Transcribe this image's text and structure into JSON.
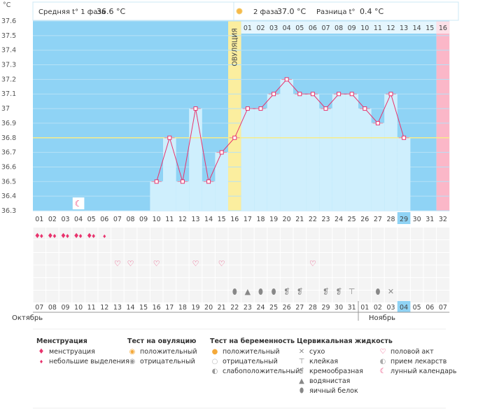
{
  "header": {
    "phase1_label": "Средняя t° 1 фаза",
    "phase1_value": "36.6 °C",
    "phase2_label": "2 фаза",
    "phase2_value": "37.0 °C",
    "diff_label": "Разница t°",
    "diff_value": "0.4 °C"
  },
  "chart_data": {
    "type": "line",
    "ylabel": "°C",
    "ylim": [
      36.3,
      37.6
    ],
    "yticks": [
      "37.6",
      "37.5",
      "37.4",
      "37.3",
      "37.2",
      "37.1",
      "37",
      "36.9",
      "36.8",
      "36.7",
      "36.6",
      "36.5",
      "36.4",
      "36.3"
    ],
    "coverline": 36.8,
    "ovulation_day": 16,
    "ovulation_label": "ОВУЛЯЦИЯ",
    "cycle_days": [
      "01",
      "02",
      "03",
      "04",
      "05",
      "06",
      "07",
      "08",
      "09",
      "10",
      "11",
      "12",
      "13",
      "14",
      "15",
      "16",
      "17",
      "18",
      "19",
      "20",
      "21",
      "22",
      "23",
      "24",
      "25",
      "26",
      "27",
      "28",
      "29",
      "30",
      "31",
      "32"
    ],
    "luteal_days": [
      "01",
      "02",
      "03",
      "04",
      "05",
      "06",
      "07",
      "08",
      "09",
      "10",
      "11",
      "12",
      "13",
      "14",
      "15",
      "16"
    ],
    "current_day": 29,
    "temperatures": [
      {
        "day": 10,
        "t": 36.5
      },
      {
        "day": 11,
        "t": 36.8
      },
      {
        "day": 12,
        "t": 36.5
      },
      {
        "day": 13,
        "t": 37.0
      },
      {
        "day": 14,
        "t": 36.5
      },
      {
        "day": 15,
        "t": 36.7
      },
      {
        "day": 16,
        "t": 36.8
      },
      {
        "day": 17,
        "t": 37.0
      },
      {
        "day": 18,
        "t": 37.0
      },
      {
        "day": 19,
        "t": 37.1
      },
      {
        "day": 20,
        "t": 37.2
      },
      {
        "day": 21,
        "t": 37.1
      },
      {
        "day": 22,
        "t": 37.1
      },
      {
        "day": 23,
        "t": 37.0
      },
      {
        "day": 24,
        "t": 37.1
      },
      {
        "day": 25,
        "t": 37.1
      },
      {
        "day": 26,
        "t": 37.0
      },
      {
        "day": 27,
        "t": 36.9
      },
      {
        "day": 28,
        "t": 37.1
      },
      {
        "day": 29,
        "t": 36.8
      }
    ],
    "dates": [
      "07",
      "08",
      "09",
      "10",
      "11",
      "12",
      "13",
      "14",
      "15",
      "16",
      "17",
      "18",
      "19",
      "20",
      "21",
      "22",
      "23",
      "24",
      "25",
      "26",
      "27",
      "28",
      "29",
      "30",
      "31",
      "01",
      "02",
      "03",
      "04",
      "05",
      "06",
      "07"
    ],
    "red_dates": [
      6,
      7,
      13,
      14,
      20,
      21,
      27
    ],
    "today_date_index": 28,
    "months": [
      "Октябрь",
      "Ноябрь"
    ],
    "markers": {
      "menstruation": [
        1,
        2,
        3,
        4,
        5
      ],
      "menstruation_light": [
        6
      ],
      "moon": [
        4
      ],
      "sex": [
        7,
        8,
        10,
        13,
        15,
        22
      ],
      "cervical": [
        {
          "day": 16,
          "type": "egg-white"
        },
        {
          "day": 17,
          "type": "watery"
        },
        {
          "day": 18,
          "type": "egg-white"
        },
        {
          "day": 19,
          "type": "egg-white"
        },
        {
          "day": 20,
          "type": "creamy"
        },
        {
          "day": 21,
          "type": "creamy"
        },
        {
          "day": 23,
          "type": "creamy"
        },
        {
          "day": 24,
          "type": "creamy"
        },
        {
          "day": 25,
          "type": "sticky"
        },
        {
          "day": 28,
          "type": "dry"
        },
        {
          "day": 27,
          "type": "egg-white"
        }
      ]
    }
  },
  "legend": {
    "menstruation": {
      "title": "Менструация",
      "items": [
        "менструация",
        "небольшие выделения"
      ]
    },
    "ovulation_test": {
      "title": "Тест на овуляцию",
      "items": [
        "положительный",
        "отрицательный"
      ]
    },
    "pregnancy_test": {
      "title": "Тест на беременность",
      "items": [
        "положительный",
        "отрицательный",
        "слабоположительный"
      ]
    },
    "cervical": {
      "title": "Цервикальная жидкость",
      "items": [
        "сухо",
        "клейкая",
        "кремообразная",
        "водянистая",
        "яичный белок"
      ]
    },
    "other": {
      "items": [
        "половой акт",
        "прием лекарств",
        "лунный календарь"
      ]
    }
  },
  "colors": {
    "follicular": "#8fd3f5",
    "luteal": "#8fd3f5",
    "bar": "#cfeffd",
    "ovulation": "#fbee9f",
    "next_cycle": "#fbb7c8",
    "line": "#e8336d",
    "today": "#8fd3f5",
    "coverline": "#f7ec8a"
  }
}
